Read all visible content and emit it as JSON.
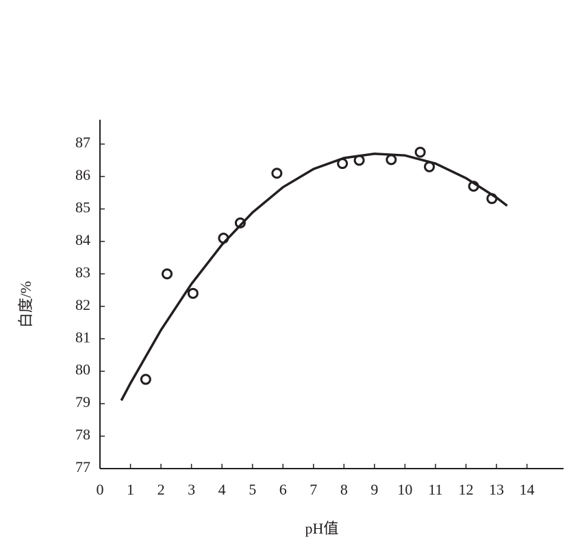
{
  "chart_data": {
    "type": "scatter",
    "x_label": "pH值",
    "y_label": "白度/%",
    "color": "#231f20",
    "x": [
      1.5,
      2.2,
      3.05,
      4.05,
      4.6,
      5.8,
      7.95,
      8.5,
      9.55,
      10.5,
      10.8,
      12.25,
      12.85
    ],
    "values": [
      79.75,
      83.0,
      82.4,
      84.1,
      84.57,
      86.1,
      86.4,
      86.5,
      86.52,
      86.75,
      86.3,
      85.7,
      85.32
    ],
    "fit": {
      "type": "line",
      "color": "#231f20",
      "x": [
        0.7,
        1,
        2,
        3,
        4,
        5,
        6,
        7,
        8,
        9,
        10,
        11,
        12,
        13,
        13.35
      ],
      "values": [
        79.1,
        79.63,
        81.27,
        82.69,
        83.9,
        84.89,
        85.67,
        86.23,
        86.57,
        86.7,
        86.65,
        86.4,
        85.95,
        85.35,
        85.1
      ]
    },
    "xlim": [
      0,
      15.2
    ],
    "ylim": [
      77,
      87.75
    ],
    "xticks": [
      0,
      1,
      2,
      3,
      4,
      5,
      6,
      7,
      8,
      9,
      10,
      11,
      12,
      13,
      14
    ],
    "yticks": [
      77,
      78,
      79,
      80,
      81,
      82,
      83,
      84,
      85,
      86,
      87
    ]
  }
}
